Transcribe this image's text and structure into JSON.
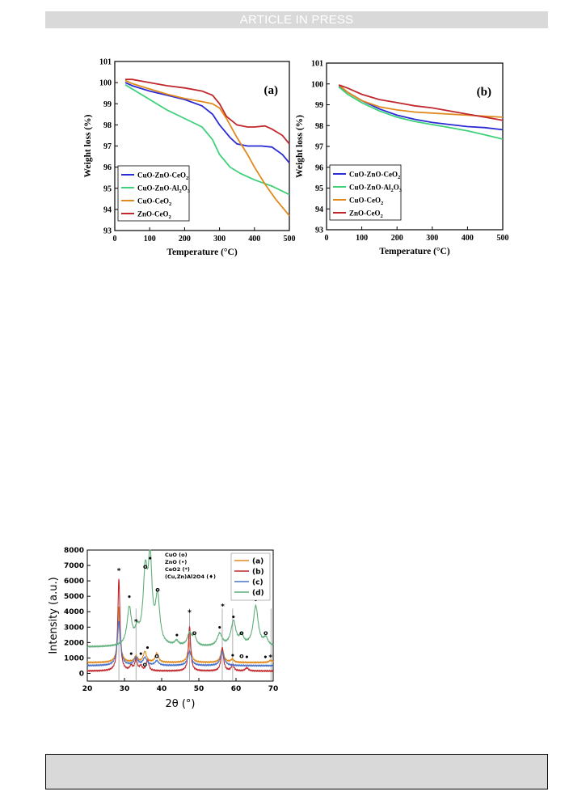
{
  "header": {
    "banner_text": "ARTICLE IN PRESS"
  },
  "chart_data": [
    {
      "type": "line",
      "panel_label": "(a)",
      "xlabel": "Temperature (°C)",
      "ylabel": "Weight loss (%)",
      "xlim": [
        0,
        500
      ],
      "ylim": [
        93,
        101
      ],
      "xticks": [
        0,
        100,
        200,
        300,
        400,
        500
      ],
      "yticks": [
        93,
        94,
        95,
        96,
        97,
        98,
        99,
        100,
        101
      ],
      "grid": false,
      "legend_position": "bottom-left",
      "series": [
        {
          "name": "CuO-ZnO-CeO2",
          "color": "#2b2bd6",
          "x": [
            30,
            50,
            100,
            150,
            200,
            250,
            280,
            300,
            330,
            350,
            380,
            420,
            450,
            480,
            500
          ],
          "y": [
            100.0,
            99.85,
            99.6,
            99.4,
            99.2,
            98.9,
            98.5,
            98.0,
            97.4,
            97.1,
            97.0,
            97.0,
            96.95,
            96.6,
            96.2
          ]
        },
        {
          "name": "CuO-ZnO-Al2O3",
          "color": "#3fd17a",
          "x": [
            30,
            50,
            100,
            150,
            200,
            250,
            280,
            300,
            330,
            360,
            400,
            450,
            500
          ],
          "y": [
            99.9,
            99.7,
            99.2,
            98.7,
            98.3,
            97.9,
            97.3,
            96.6,
            96.0,
            95.7,
            95.4,
            95.1,
            94.7
          ]
        },
        {
          "name": "CuO-CeO2",
          "color": "#e08a1e",
          "x": [
            30,
            50,
            100,
            150,
            200,
            250,
            280,
            300,
            320,
            350,
            380,
            400,
            430,
            460,
            480,
            500
          ],
          "y": [
            100.1,
            99.95,
            99.7,
            99.45,
            99.25,
            99.1,
            99.0,
            98.8,
            98.3,
            97.4,
            96.6,
            96.0,
            95.2,
            94.5,
            94.1,
            93.7
          ]
        },
        {
          "name": "ZnO-CeO2",
          "color": "#c0282d",
          "x": [
            30,
            50,
            100,
            150,
            200,
            250,
            280,
            300,
            320,
            350,
            380,
            400,
            430,
            450,
            480,
            500
          ],
          "y": [
            100.15,
            100.15,
            100.0,
            99.85,
            99.75,
            99.6,
            99.4,
            99.0,
            98.4,
            98.0,
            97.9,
            97.9,
            97.95,
            97.8,
            97.5,
            97.1
          ]
        }
      ],
      "legend_labels": [
        "CuO-ZnO-CeO",
        "CuO-ZnO-Al",
        "CuO-CeO",
        "ZnO-CeO"
      ],
      "legend_subscripts": [
        [
          "2"
        ],
        [
          "2",
          "3"
        ],
        [
          "2"
        ],
        [
          "2"
        ]
      ],
      "legend_mid": [
        "",
        "O",
        "",
        ""
      ]
    },
    {
      "type": "line",
      "panel_label": "(b)",
      "xlabel": "Temperature (°C)",
      "ylabel": "Weight loss (%)",
      "xlim": [
        0,
        500
      ],
      "ylim": [
        93,
        101
      ],
      "xticks": [
        0,
        100,
        200,
        300,
        400,
        500
      ],
      "yticks": [
        93,
        94,
        95,
        96,
        97,
        98,
        99,
        100,
        101
      ],
      "grid": false,
      "legend_position": "bottom-left",
      "series": [
        {
          "name": "CuO-ZnO-CeO2",
          "color": "#2b2bd6",
          "x": [
            35,
            60,
            100,
            150,
            200,
            250,
            300,
            350,
            400,
            450,
            500
          ],
          "y": [
            99.9,
            99.6,
            99.2,
            98.8,
            98.5,
            98.3,
            98.15,
            98.05,
            97.95,
            97.9,
            97.8
          ]
        },
        {
          "name": "CuO-ZnO-Al2O3",
          "color": "#3fd17a",
          "x": [
            35,
            60,
            100,
            150,
            200,
            250,
            300,
            350,
            400,
            450,
            500
          ],
          "y": [
            99.85,
            99.5,
            99.1,
            98.7,
            98.4,
            98.2,
            98.05,
            97.9,
            97.75,
            97.55,
            97.35
          ]
        },
        {
          "name": "CuO-CeO2",
          "color": "#e08a1e",
          "x": [
            35,
            60,
            100,
            150,
            200,
            250,
            300,
            350,
            400,
            450,
            500
          ],
          "y": [
            99.95,
            99.6,
            99.2,
            98.9,
            98.75,
            98.65,
            98.6,
            98.55,
            98.5,
            98.45,
            98.4
          ]
        },
        {
          "name": "ZnO-CeO2",
          "color": "#c0282d",
          "x": [
            35,
            60,
            100,
            150,
            200,
            250,
            300,
            350,
            400,
            450,
            500
          ],
          "y": [
            99.95,
            99.8,
            99.5,
            99.25,
            99.1,
            98.95,
            98.85,
            98.7,
            98.55,
            98.4,
            98.25
          ]
        }
      ],
      "legend_labels": [
        "CuO-ZnO-CeO",
        "CuO-ZnO-Al",
        "CuO-CeO",
        "ZnO-CeO"
      ],
      "legend_subscripts": [
        [
          "2"
        ],
        [
          "2",
          "3"
        ],
        [
          "2"
        ],
        [
          "2"
        ]
      ],
      "legend_mid": [
        "",
        "O",
        "",
        ""
      ]
    },
    {
      "type": "line",
      "xlabel": "2θ (°)",
      "ylabel": "Intensity (a.u.)",
      "xlim": [
        20,
        70
      ],
      "ylim": [
        -500,
        8000
      ],
      "xticks": [
        20,
        30,
        40,
        50,
        60,
        70
      ],
      "yticks": [
        0,
        1000,
        2000,
        3000,
        4000,
        5000,
        6000,
        7000,
        8000
      ],
      "grid": false,
      "legend_position": "top-right",
      "phase_legend": [
        "CuO (o)",
        "ZnO (•)",
        "CeO2 (*)",
        "(Cu,Zn)Al2O4 (♦)"
      ],
      "series": [
        {
          "name": "(a)",
          "color": "#e08a1e",
          "baseline": 700,
          "peaks": [
            [
              28.5,
              3600,
              0.4
            ],
            [
              33.1,
              400,
              0.5
            ],
            [
              35.5,
              700,
              0.5
            ],
            [
              38.7,
              600,
              0.5
            ],
            [
              47.5,
              1300,
              0.5
            ],
            [
              56.3,
              900,
              0.5
            ],
            [
              59,
              200,
              0.5
            ],
            [
              69.4,
              150,
              0.6
            ]
          ]
        },
        {
          "name": "(b)",
          "color": "#c0282d",
          "baseline": 150,
          "peaks": [
            [
              28.5,
              6000,
              0.35
            ],
            [
              31.8,
              300,
              0.4
            ],
            [
              33.1,
              700,
              0.4
            ],
            [
              34.4,
              300,
              0.4
            ],
            [
              36.2,
              700,
              0.4
            ],
            [
              47.5,
              2900,
              0.35
            ],
            [
              56.3,
              1500,
              0.4
            ],
            [
              59.1,
              400,
              0.4
            ],
            [
              62.9,
              200,
              0.5
            ]
          ]
        },
        {
          "name": "(c)",
          "color": "#4a73c9",
          "baseline": 500,
          "peaks": [
            [
              28.5,
              2900,
              0.5
            ],
            [
              33.1,
              500,
              0.6
            ],
            [
              35.5,
              500,
              0.6
            ],
            [
              38.7,
              300,
              0.6
            ],
            [
              47.5,
              900,
              0.6
            ],
            [
              56.3,
              900,
              0.6
            ]
          ]
        },
        {
          "name": "(d)",
          "color": "#5fae7a",
          "baseline": 1700,
          "peaks": [
            [
              31.3,
              2400,
              0.7
            ],
            [
              33.4,
              800,
              0.7
            ],
            [
              35.6,
              4500,
              0.7
            ],
            [
              36.9,
              5100,
              0.6
            ],
            [
              38.9,
              3000,
              0.7
            ],
            [
              44,
              300,
              0.6
            ],
            [
              47.5,
              800,
              0.7
            ],
            [
              48.8,
              600,
              0.6
            ],
            [
              55.6,
              800,
              0.8
            ],
            [
              59.3,
              1600,
              0.8
            ],
            [
              61.5,
              600,
              0.7
            ],
            [
              65.3,
              2600,
              0.8
            ],
            [
              68,
              500,
              0.7
            ]
          ]
        }
      ],
      "reference_lines": [
        28.5,
        33.1,
        47.5,
        56.3,
        59.1,
        69.4
      ],
      "markers": [
        {
          "x": 28.5,
          "y": 6500,
          "sym": "*"
        },
        {
          "x": 31.3,
          "y": 4800,
          "sym": "•"
        },
        {
          "x": 33.1,
          "y": 3200,
          "sym": "*"
        },
        {
          "x": 35.6,
          "y": 6800,
          "sym": "o"
        },
        {
          "x": 36.9,
          "y": 7300,
          "sym": "•"
        },
        {
          "x": 38.9,
          "y": 5300,
          "sym": "o"
        },
        {
          "x": 44.1,
          "y": 2300,
          "sym": "•"
        },
        {
          "x": 47.5,
          "y": 3800,
          "sym": "*"
        },
        {
          "x": 48.8,
          "y": 2500,
          "sym": "o"
        },
        {
          "x": 55.6,
          "y": 2800,
          "sym": "•"
        },
        {
          "x": 56.4,
          "y": 4200,
          "sym": "*"
        },
        {
          "x": 59.3,
          "y": 3500,
          "sym": "•"
        },
        {
          "x": 61.5,
          "y": 2500,
          "sym": "o"
        },
        {
          "x": 65.3,
          "y": 4600,
          "sym": "•"
        },
        {
          "x": 68.0,
          "y": 2500,
          "sym": "o"
        },
        {
          "x": 31.8,
          "y": 1100,
          "sym": "•"
        },
        {
          "x": 34.4,
          "y": 1100,
          "sym": "•"
        },
        {
          "x": 36.2,
          "y": 1500,
          "sym": "•"
        },
        {
          "x": 35.5,
          "y": 450,
          "sym": "o"
        },
        {
          "x": 38.7,
          "y": 1000,
          "sym": "o"
        },
        {
          "x": 59.1,
          "y": 1000,
          "sym": "•"
        },
        {
          "x": 61.5,
          "y": 1000,
          "sym": "o"
        },
        {
          "x": 62.9,
          "y": 900,
          "sym": "•"
        },
        {
          "x": 67.9,
          "y": 900,
          "sym": "•"
        },
        {
          "x": 69.3,
          "y": 900,
          "sym": "*"
        }
      ]
    }
  ]
}
